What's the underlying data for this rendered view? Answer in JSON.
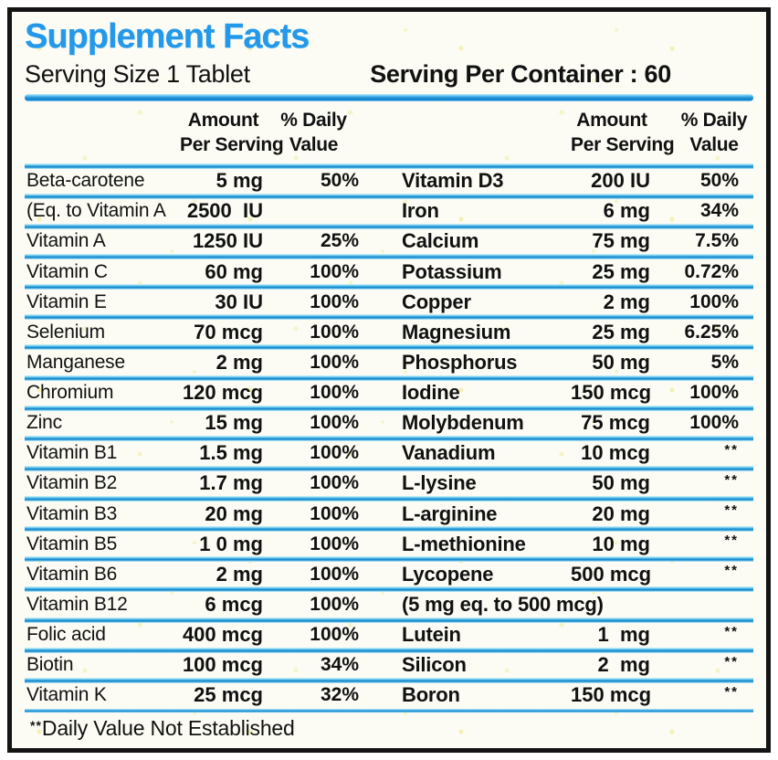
{
  "label": {
    "title": "Supplement Facts",
    "serving_size": "Serving Size 1 Tablet",
    "servings_per_container": "Serving Per Container : 60",
    "footnote_stars": "**",
    "footnote_text": "Daily Value Not Established"
  },
  "columns": {
    "amount_line1": "Amount",
    "amount_line2": "Per Serving",
    "dv_line1": "% Daily",
    "dv_line2": "Value"
  },
  "colors": {
    "title_blue": "#2499ea",
    "divider_blue": "#137fc4",
    "divider_cyan": "#c9eef9",
    "border_black": "#141414",
    "background": "#fcfcf4",
    "text_black": "#111111"
  },
  "rows": [
    {
      "left": {
        "name": "Beta-carotene",
        "amount": "5 mg",
        "dv": "50%"
      },
      "right": {
        "name": "Vitamin D3",
        "amount": "200 IU",
        "dv": "50%"
      }
    },
    {
      "left": {
        "name": "(Eq. to Vitamin A",
        "amount": "2500  IU",
        "dv": ""
      },
      "right": {
        "name": "Iron",
        "amount": "6 mg",
        "dv": "34%"
      }
    },
    {
      "left": {
        "name": "Vitamin A",
        "amount": "1250 IU",
        "dv": "25%"
      },
      "right": {
        "name": "Calcium",
        "amount": "75 mg",
        "dv": "7.5%"
      }
    },
    {
      "left": {
        "name": "Vitamin C",
        "amount": "60 mg",
        "dv": "100%"
      },
      "right": {
        "name": "Potassium",
        "amount": "25 mg",
        "dv": "0.72%"
      }
    },
    {
      "left": {
        "name": "Vitamin E",
        "amount": "30 IU",
        "dv": "100%"
      },
      "right": {
        "name": "Copper",
        "amount": "2 mg",
        "dv": "100%"
      }
    },
    {
      "left": {
        "name": "Selenium",
        "amount": "70 mcg",
        "dv": "100%"
      },
      "right": {
        "name": "Magnesium",
        "amount": "25 mg",
        "dv": "6.25%"
      }
    },
    {
      "left": {
        "name": "Manganese",
        "amount": "2 mg",
        "dv": "100%"
      },
      "right": {
        "name": "Phosphorus",
        "amount": "50 mg",
        "dv": "5%"
      }
    },
    {
      "left": {
        "name": "Chromium",
        "amount": "120 mcg",
        "dv": "100%"
      },
      "right": {
        "name": "Iodine",
        "amount": "150 mcg",
        "dv": "100%"
      }
    },
    {
      "left": {
        "name": "Zinc",
        "amount": "15 mg",
        "dv": "100%"
      },
      "right": {
        "name": "Molybdenum",
        "amount": "75 mcg",
        "dv": "100%"
      }
    },
    {
      "left": {
        "name": "Vitamin B1",
        "amount": "1.5 mg",
        "dv": "100%"
      },
      "right": {
        "name": "Vanadium",
        "amount": "10 mcg",
        "dv": "**"
      }
    },
    {
      "left": {
        "name": "Vitamin B2",
        "amount": "1.7 mg",
        "dv": "100%"
      },
      "right": {
        "name": "L-lysine",
        "amount": "50 mg",
        "dv": "**"
      }
    },
    {
      "left": {
        "name": "Vitamin B3",
        "amount": "20 mg",
        "dv": "100%"
      },
      "right": {
        "name": "L-arginine",
        "amount": "20 mg",
        "dv": "**"
      }
    },
    {
      "left": {
        "name": "Vitamin B5",
        "amount": "1 0 mg",
        "dv": "100%"
      },
      "right": {
        "name": "L-methionine",
        "amount": "10 mg",
        "dv": "**"
      }
    },
    {
      "left": {
        "name": "Vitamin B6",
        "amount": "2 mg",
        "dv": "100%"
      },
      "right": {
        "name": "Lycopene",
        "amount": "500 mcg",
        "dv": "**"
      }
    },
    {
      "left": {
        "name": "Vitamin B12",
        "amount": "6 mcg",
        "dv": "100%"
      },
      "right": {
        "name": "(5 mg eq. to 500 mcg)",
        "amount": "",
        "dv": ""
      }
    },
    {
      "left": {
        "name": "Folic acid",
        "amount": "400 mcg",
        "dv": "100%"
      },
      "right": {
        "name": "Lutein",
        "amount": "1  mg",
        "dv": "**"
      }
    },
    {
      "left": {
        "name": "Biotin",
        "amount": "100 mcg",
        "dv": "34%"
      },
      "right": {
        "name": "Silicon",
        "amount": "2  mg",
        "dv": "**"
      }
    },
    {
      "left": {
        "name": "Vitamin K",
        "amount": "25 mcg",
        "dv": "32%"
      },
      "right": {
        "name": "Boron",
        "amount": "150 mcg",
        "dv": "**"
      }
    }
  ]
}
